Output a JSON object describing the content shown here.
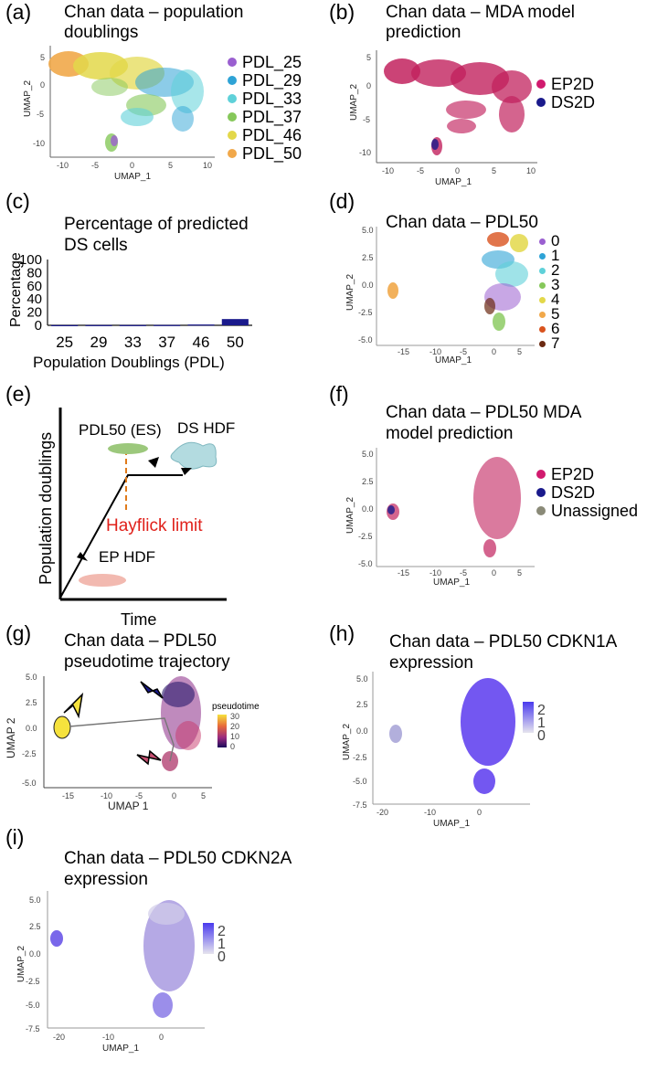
{
  "panels": {
    "a": {
      "letter": "(a)",
      "title1": "Chan data – population",
      "title2": "doublings",
      "legend": [
        {
          "label": "PDL_25",
          "color": "#9a5fd0"
        },
        {
          "label": "PDL_29",
          "color": "#2ea3d6"
        },
        {
          "label": "PDL_33",
          "color": "#5fd1d9"
        },
        {
          "label": "PDL_37",
          "color": "#86c85a"
        },
        {
          "label": "PDL_46",
          "color": "#e3d84a"
        },
        {
          "label": "PDL_50",
          "color": "#f1a84a"
        }
      ],
      "xlabel": "UMAP_1",
      "ylabel": "UMAP_2",
      "xticks": [
        "-10",
        "-5",
        "0",
        "5",
        "10"
      ],
      "yticks": [
        "5",
        "0",
        "-5",
        "-10"
      ]
    },
    "b": {
      "letter": "(b)",
      "title1": "Chan data – MDA model",
      "title2": "prediction",
      "legend": [
        {
          "label": "EP2D",
          "color": "#d11a6e"
        },
        {
          "label": "DS2D",
          "color": "#1a1a8c"
        }
      ],
      "xlabel": "UMAP_1",
      "ylabel": "UMAP_2",
      "xticks": [
        "-10",
        "-5",
        "0",
        "5",
        "10"
      ],
      "yticks": [
        "5",
        "0",
        "-5",
        "-10"
      ]
    },
    "c": {
      "letter": "(c)",
      "title1": "Percentage of predicted",
      "title2": "DS cells",
      "ylabel": "Percentage",
      "xlabel": "Population Doublings (PDL)"
    },
    "d": {
      "letter": "(d)",
      "title1": "Chan data – PDL50",
      "legend": [
        {
          "label": "0",
          "color": "#9a5fd0"
        },
        {
          "label": "1",
          "color": "#2ea3d6"
        },
        {
          "label": "2",
          "color": "#5fd1d9"
        },
        {
          "label": "3",
          "color": "#86c85a"
        },
        {
          "label": "4",
          "color": "#e3d84a"
        },
        {
          "label": "5",
          "color": "#f1a84a"
        },
        {
          "label": "6",
          "color": "#d9531e"
        },
        {
          "label": "7",
          "color": "#6b2a12"
        }
      ],
      "xlabel": "UMAP_1",
      "ylabel": "UMAP_2",
      "xticks": [
        "-15",
        "-10",
        "-5",
        "0",
        "5"
      ],
      "yticks": [
        "5.0",
        "2.5",
        "0.0",
        "-2.5",
        "-5.0"
      ]
    },
    "e": {
      "letter": "(e)",
      "ylabel": "Population doublings",
      "xlabel": "Time",
      "label_pdl50": "PDL50 (ES)",
      "label_ds": "DS HDF",
      "label_hayflick": "Hayflick limit",
      "label_ep": "EP HDF"
    },
    "f": {
      "letter": "(f)",
      "title1": "Chan data – PDL50 MDA",
      "title2": "model prediction",
      "legend": [
        {
          "label": "EP2D",
          "color": "#d11a6e"
        },
        {
          "label": "DS2D",
          "color": "#1a1a8c"
        },
        {
          "label": "Unassigned",
          "color": "#8a8a78"
        }
      ],
      "xlabel": "UMAP_1",
      "ylabel": "UMAP_2",
      "xticks": [
        "-15",
        "-10",
        "-5",
        "0",
        "5"
      ],
      "yticks": [
        "5.0",
        "2.5",
        "0.0",
        "-2.5",
        "-5.0"
      ]
    },
    "g": {
      "letter": "(g)",
      "title1": "Chan data – PDL50",
      "title2": "pseudotime trajectory",
      "legend_title": "pseudotime",
      "legend_values": [
        "30",
        "20",
        "10",
        "0"
      ],
      "xlabel": "UMAP 1",
      "ylabel": "UMAP 2",
      "xticks": [
        "-15",
        "-10",
        "-5",
        "0",
        "5"
      ],
      "yticks": [
        "5.0",
        "2.5",
        "0.0",
        "-2.5",
        "-5.0"
      ]
    },
    "h": {
      "letter": "(h)",
      "title1": "Chan data – PDL50 CDKN1A",
      "title2": "expression",
      "legend_values": [
        "2",
        "1",
        "0"
      ],
      "xlabel": "UMAP_1",
      "ylabel": "UMAP_2",
      "xticks": [
        "-20",
        "-10",
        "0"
      ],
      "yticks": [
        "5.0",
        "2.5",
        "0.0",
        "-2.5",
        "-5.0",
        "-7.5"
      ]
    },
    "i": {
      "letter": "(i)",
      "title1": "Chan data – PDL50 CDKN2A",
      "title2": "expression",
      "legend_values": [
        "2",
        "1",
        "0"
      ],
      "xlabel": "UMAP_1",
      "ylabel": "UMAP_2",
      "xticks": [
        "-20",
        "-10",
        "0"
      ],
      "yticks": [
        "5.0",
        "2.5",
        "0.0",
        "-2.5",
        "-5.0",
        "-7.5"
      ]
    }
  },
  "chart_data": [
    {
      "type": "bar",
      "title": "Percentage of predicted DS cells",
      "xlabel": "Population Doublings (PDL)",
      "ylabel": "Percentage",
      "categories": [
        "25",
        "29",
        "33",
        "37",
        "46",
        "50"
      ],
      "values": [
        0.3,
        0.4,
        0.4,
        0.5,
        1.2,
        9.5
      ],
      "ylim": [
        0,
        100
      ],
      "yticks": [
        "100",
        "80",
        "60",
        "40",
        "20",
        "0"
      ],
      "color": "#1a1a8c"
    }
  ]
}
